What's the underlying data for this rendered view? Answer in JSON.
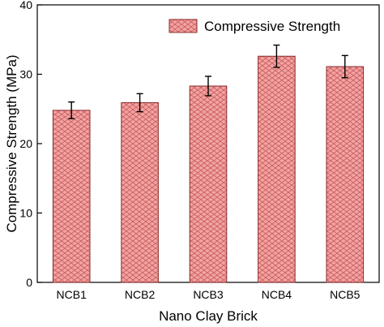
{
  "chart_data": {
    "type": "bar",
    "categories": [
      "NCB1",
      "NCB2",
      "NCB3",
      "NCB4",
      "NCB5"
    ],
    "series": [
      {
        "name": "Compressive Strength",
        "values": [
          24.8,
          25.9,
          28.3,
          32.6,
          31.1
        ],
        "errors": [
          1.2,
          1.3,
          1.4,
          1.6,
          1.6
        ]
      }
    ],
    "xlabel": "Nano Clay Brick",
    "ylabel": "Compressive Strength (MPa)",
    "ylim": [
      0,
      40
    ],
    "yticks": [
      0,
      10,
      20,
      30,
      40
    ],
    "grid": false,
    "legend_position": "top-right",
    "bar_fill_color": "#f2a3a3",
    "bar_pattern_color": "#c85a5a",
    "bar_edge_color": "#8b2a2a"
  }
}
